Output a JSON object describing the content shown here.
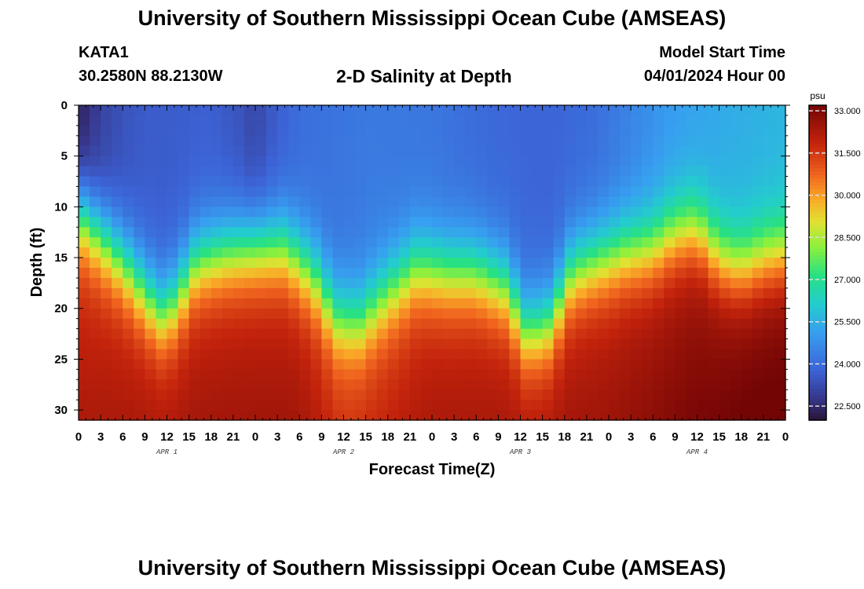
{
  "header": {
    "title": "University of Southern Mississippi Ocean Cube (AMSEAS)",
    "station": "KATA1",
    "coords": "30.2580N  88.2130W",
    "product": "2-D Salinity at Depth",
    "model_start_label": "Model Start Time",
    "model_start_value": "04/01/2024 Hour 00"
  },
  "footer": {
    "title": "University of Southern Mississippi Ocean Cube (AMSEAS)"
  },
  "chart_data": {
    "type": "heatmap",
    "xlabel": "Forecast Time(Z)",
    "ylabel": "Depth (ft)",
    "x_range_hours": [
      0,
      96
    ],
    "ylim": [
      0,
      31
    ],
    "y_inverted": true,
    "x_tick_labels": [
      "0",
      "3",
      "6",
      "9",
      "12",
      "15",
      "18",
      "21",
      "0",
      "3",
      "6",
      "9",
      "12",
      "15",
      "18",
      "21",
      "0",
      "3",
      "6",
      "9",
      "12",
      "15",
      "18",
      "21",
      "0",
      "3",
      "6",
      "9",
      "12",
      "15",
      "18",
      "21",
      "0"
    ],
    "y_ticks": [
      0,
      5,
      10,
      15,
      20,
      25,
      30
    ],
    "day_labels": [
      {
        "label": "APR 1",
        "hour": 12
      },
      {
        "label": "APR 2",
        "hour": 36
      },
      {
        "label": "APR 3",
        "hour": 60
      },
      {
        "label": "APR 4",
        "hour": 84
      }
    ],
    "colorbar": {
      "unit": "psu",
      "min": 22.0,
      "max": 33.2,
      "tick_labels": [
        "33.000",
        "31.500",
        "30.000",
        "28.500",
        "27.000",
        "25.500",
        "24.000",
        "22.500"
      ],
      "tick_values": [
        33.0,
        31.5,
        30.0,
        28.5,
        27.0,
        25.5,
        24.0,
        22.5
      ]
    },
    "halocline_depth_ft": {
      "hours": [
        0,
        3,
        6,
        9,
        11,
        13,
        16,
        20,
        24,
        28,
        32,
        35,
        38,
        42,
        46,
        50,
        54,
        58,
        61,
        64,
        67,
        70,
        74,
        78,
        81,
        84,
        87,
        90,
        93,
        96
      ],
      "depths": [
        10.5,
        13.0,
        15.5,
        18.5,
        20.5,
        19.5,
        15.5,
        14.5,
        14.0,
        14.0,
        17.0,
        21.0,
        21.5,
        18.5,
        16.0,
        16.5,
        16.5,
        18.0,
        22.5,
        21.5,
        16.5,
        15.5,
        14.5,
        14.0,
        12.5,
        12.0,
        15.0,
        16.0,
        15.0,
        14.5
      ]
    },
    "surface_salinity_psu": {
      "hours": [
        0,
        3,
        6,
        9,
        18,
        22,
        24,
        26,
        30,
        40,
        48,
        56,
        64,
        70,
        75,
        80,
        88,
        96
      ],
      "values": [
        22.2,
        23.0,
        23.4,
        23.6,
        23.7,
        23.4,
        23.1,
        23.5,
        24.0,
        24.3,
        24.2,
        23.9,
        23.8,
        24.0,
        24.5,
        25.0,
        25.4,
        25.6
      ]
    },
    "bottom_salinity_psu": {
      "hours": [
        0,
        10,
        20,
        30,
        36,
        42,
        48,
        60,
        72,
        84,
        90,
        96
      ],
      "values": [
        31.5,
        31.8,
        31.8,
        31.8,
        31.2,
        31.4,
        31.7,
        31.8,
        31.9,
        32.4,
        32.7,
        32.8
      ]
    }
  }
}
